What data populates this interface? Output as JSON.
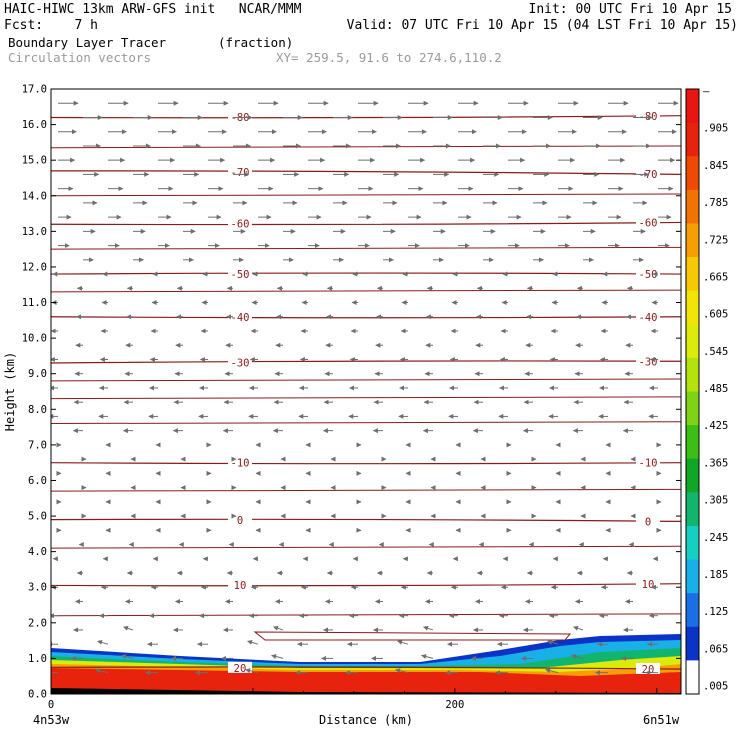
{
  "header": {
    "line1_left": "HAIC-HIWC 13km ARW-GFS init   NCAR/MMM",
    "line1_right": "Init: 00 UTC Fri 10 Apr 15",
    "line2_left": "Fcst:    7 h",
    "line2_right": "Valid: 07 UTC Fri 10 Apr 15 (04 LST Fri 10 Apr 15)",
    "line3_left": "Boundary Layer Tracer",
    "line3_unit": "(fraction)",
    "line4_left": "Circulation vectors",
    "line4_xy": "XY= 259.5, 91.6 to 274.6,110.2"
  },
  "chart_data": {
    "type": "heatmap",
    "title": "Boundary Layer Tracer",
    "units": "(fraction)",
    "overlay": "Circulation vectors",
    "xlabel": "Distance (km)",
    "ylabel": "Height (km)",
    "xlim": [
      0,
      312
    ],
    "ylim": [
      0,
      17
    ],
    "x_ticks": [
      {
        "value": 0,
        "label": "0"
      },
      {
        "value": 200,
        "label": "200"
      }
    ],
    "x_end_labels": {
      "left": "4n53w",
      "right": "6n51w"
    },
    "y_ticks": [
      "0.0",
      "1.0",
      "2.0",
      "3.0",
      "4.0",
      "5.0",
      "6.0",
      "7.0",
      "8.0",
      "9.0",
      "10.0",
      "11.0",
      "12.0",
      "13.0",
      "14.0",
      "15.0",
      "16.0",
      "17.0"
    ],
    "colorbar": {
      "labels": [
        ".005",
        ".065",
        ".125",
        ".185",
        ".245",
        ".305",
        ".365",
        ".425",
        ".485",
        ".545",
        ".605",
        ".665",
        ".725",
        ".785",
        ".845",
        ".905",
        "–"
      ],
      "colors": [
        "#ffffff",
        "#0a33c8",
        "#1a6fe6",
        "#19b0e8",
        "#16cfc2",
        "#12b56e",
        "#10a626",
        "#3cbf14",
        "#7ed414",
        "#b4e20e",
        "#dceb0a",
        "#f2e408",
        "#f7c806",
        "#f79e05",
        "#f27204",
        "#ee4a03",
        "#e8230d",
        "#e81510"
      ]
    },
    "temperature_contours": [
      {
        "label": "-80",
        "y_left": 16.2,
        "y_right": 16.25
      },
      {
        "label": "-70",
        "y_left": 14.7,
        "y_right": 14.6
      },
      {
        "label": "-60",
        "y_left": 13.2,
        "y_right": 13.25
      },
      {
        "label": "-50",
        "y_left": 11.8,
        "y_right": 11.8
      },
      {
        "label": "-40",
        "y_left": 10.6,
        "y_right": 10.6
      },
      {
        "label": "-30",
        "y_left": 9.3,
        "y_right": 9.35
      },
      {
        "label": "-10",
        "y_left": 6.5,
        "y_right": 6.5
      },
      {
        "label": "0",
        "y_left": 4.9,
        "y_right": 4.85
      },
      {
        "label": "10",
        "y_left": 3.05,
        "y_right": 3.1
      },
      {
        "label": "20",
        "y_left": 0.75,
        "y_right": 0.7
      }
    ],
    "grid": false
  }
}
